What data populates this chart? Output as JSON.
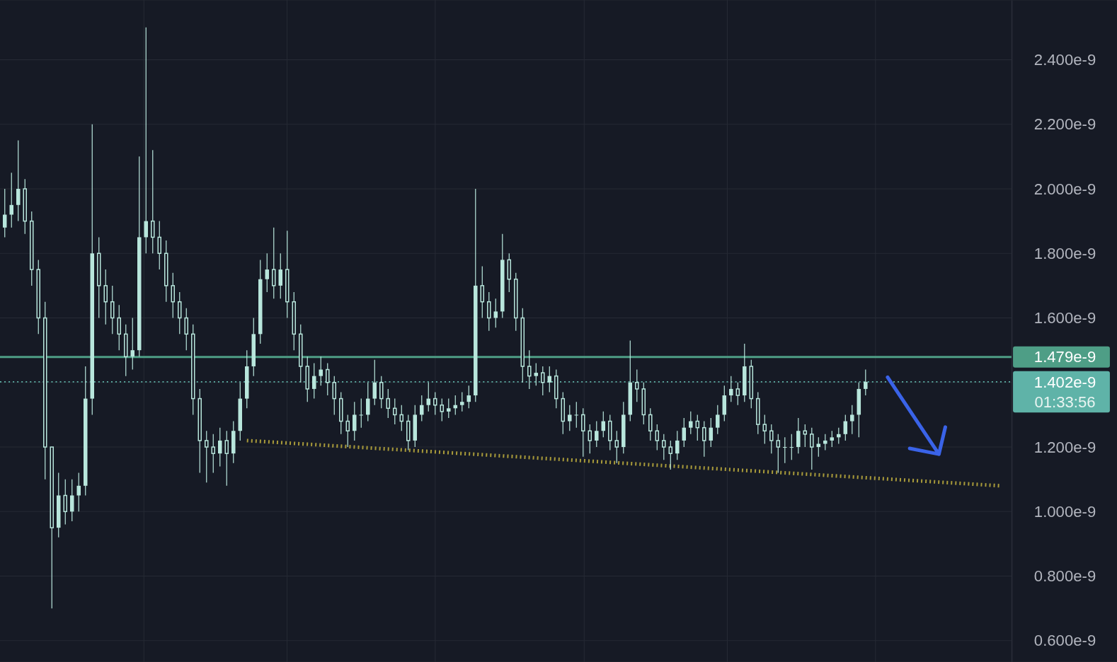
{
  "chart_data": {
    "type": "candlestick",
    "color": "#b8e6dc",
    "categories": [
      null,
      null,
      null,
      null,
      null,
      null,
      null,
      null,
      null,
      null,
      null,
      null,
      null,
      null,
      null,
      null,
      null,
      null,
      null,
      null,
      null,
      null,
      null,
      null,
      null,
      null,
      null,
      null,
      null,
      null,
      null,
      null,
      null,
      null,
      null,
      null,
      null,
      null,
      null,
      null,
      null,
      null,
      null,
      null,
      null,
      null,
      null,
      null,
      null,
      null,
      null,
      null,
      null,
      null,
      null,
      null,
      null,
      null,
      null,
      null,
      null,
      null,
      null,
      null,
      null,
      null,
      null,
      null,
      null,
      null,
      null,
      null,
      null,
      null,
      null,
      null,
      null,
      null,
      null,
      null,
      null,
      null,
      null,
      null,
      null,
      null,
      null,
      null,
      null,
      null,
      null,
      null,
      null,
      null,
      null,
      null,
      null,
      null,
      null,
      null,
      null,
      null,
      null,
      null,
      null,
      null,
      null,
      null,
      null,
      null,
      null,
      null,
      null,
      null,
      null,
      null,
      null,
      null,
      null,
      null,
      null,
      null,
      null,
      null,
      null,
      null,
      null,
      null,
      null,
      null,
      null,
      null,
      null,
      null,
      null,
      null,
      null,
      null,
      null,
      null,
      null,
      null,
      null,
      null,
      null,
      null,
      null,
      null,
      null,
      null
    ],
    "ohlc": [
      [
        1.88e-09,
        2e-09,
        1.85e-09,
        1.92e-09
      ],
      [
        1.92e-09,
        2.05e-09,
        1.88e-09,
        1.95e-09
      ],
      [
        1.95e-09,
        2.15e-09,
        1.9e-09,
        2e-09
      ],
      [
        2e-09,
        2.03e-09,
        1.86e-09,
        1.9e-09
      ],
      [
        1.9e-09,
        1.93e-09,
        1.7e-09,
        1.75e-09
      ],
      [
        1.75e-09,
        1.78e-09,
        1.55e-09,
        1.6e-09
      ],
      [
        1.6e-09,
        1.65e-09,
        1.1e-09,
        1.2e-09
      ],
      [
        1.2e-09,
        1.2e-09,
        7e-10,
        9.5e-10
      ],
      [
        9.5e-10,
        1.12e-09,
        9.2e-10,
        1.05e-09
      ],
      [
        1.05e-09,
        1.1e-09,
        9.6e-10,
        1e-09
      ],
      [
        1e-09,
        1.1e-09,
        9.7e-10,
        1.05e-09
      ],
      [
        1.05e-09,
        1.12e-09,
        1e-09,
        1.08e-09
      ],
      [
        1.08e-09,
        1.45e-09,
        1.05e-09,
        1.35e-09
      ],
      [
        1.35e-09,
        2.2e-09,
        1.3e-09,
        1.8e-09
      ],
      [
        1.8e-09,
        1.85e-09,
        1.6e-09,
        1.7e-09
      ],
      [
        1.7e-09,
        1.75e-09,
        1.58e-09,
        1.65e-09
      ],
      [
        1.65e-09,
        1.7e-09,
        1.55e-09,
        1.6e-09
      ],
      [
        1.6e-09,
        1.64e-09,
        1.5e-09,
        1.55e-09
      ],
      [
        1.55e-09,
        1.58e-09,
        1.42e-09,
        1.48e-09
      ],
      [
        1.48e-09,
        1.6e-09,
        1.44e-09,
        1.5e-09
      ],
      [
        1.5e-09,
        2.1e-09,
        1.48e-09,
        1.85e-09
      ],
      [
        1.85e-09,
        2.5e-09,
        1.8e-09,
        1.9e-09
      ],
      [
        1.9e-09,
        2.12e-09,
        1.8e-09,
        1.85e-09
      ],
      [
        1.85e-09,
        1.9e-09,
        1.75e-09,
        1.8e-09
      ],
      [
        1.8e-09,
        1.84e-09,
        1.65e-09,
        1.7e-09
      ],
      [
        1.7e-09,
        1.74e-09,
        1.6e-09,
        1.65e-09
      ],
      [
        1.65e-09,
        1.68e-09,
        1.55e-09,
        1.6e-09
      ],
      [
        1.6e-09,
        1.63e-09,
        1.5e-09,
        1.55e-09
      ],
      [
        1.55e-09,
        1.58e-09,
        1.3e-09,
        1.35e-09
      ],
      [
        1.35e-09,
        1.38e-09,
        1.12e-09,
        1.22e-09
      ],
      [
        1.22e-09,
        1.25e-09,
        1.09e-09,
        1.2e-09
      ],
      [
        1.2e-09,
        1.24e-09,
        1.12e-09,
        1.18e-09
      ],
      [
        1.18e-09,
        1.26e-09,
        1.14e-09,
        1.22e-09
      ],
      [
        1.22e-09,
        1.25e-09,
        1.08e-09,
        1.18e-09
      ],
      [
        1.18e-09,
        1.28e-09,
        1.15e-09,
        1.25e-09
      ],
      [
        1.25e-09,
        1.4e-09,
        1.22e-09,
        1.35e-09
      ],
      [
        1.35e-09,
        1.5e-09,
        1.32e-09,
        1.45e-09
      ],
      [
        1.45e-09,
        1.6e-09,
        1.42e-09,
        1.55e-09
      ],
      [
        1.55e-09,
        1.78e-09,
        1.52e-09,
        1.72e-09
      ],
      [
        1.72e-09,
        1.8e-09,
        1.68e-09,
        1.75e-09
      ],
      [
        1.75e-09,
        1.88e-09,
        1.66e-09,
        1.7e-09
      ],
      [
        1.7e-09,
        1.8e-09,
        1.66e-09,
        1.75e-09
      ],
      [
        1.75e-09,
        1.87e-09,
        1.6e-09,
        1.65e-09
      ],
      [
        1.65e-09,
        1.68e-09,
        1.5e-09,
        1.55e-09
      ],
      [
        1.55e-09,
        1.58e-09,
        1.4e-09,
        1.45e-09
      ],
      [
        1.45e-09,
        1.48e-09,
        1.34e-09,
        1.38e-09
      ],
      [
        1.38e-09,
        1.46e-09,
        1.35e-09,
        1.42e-09
      ],
      [
        1.42e-09,
        1.48e-09,
        1.39e-09,
        1.44e-09
      ],
      [
        1.44e-09,
        1.46e-09,
        1.36e-09,
        1.4e-09
      ],
      [
        1.4e-09,
        1.42e-09,
        1.3e-09,
        1.35e-09
      ],
      [
        1.35e-09,
        1.37e-09,
        1.24e-09,
        1.28e-09
      ],
      [
        1.28e-09,
        1.3e-09,
        1.2e-09,
        1.25e-09
      ],
      [
        1.25e-09,
        1.34e-09,
        1.22e-09,
        1.3e-09
      ],
      [
        1.3e-09,
        1.35e-09,
        1.26e-09,
        1.3e-09
      ],
      [
        1.3e-09,
        1.4e-09,
        1.28e-09,
        1.35e-09
      ],
      [
        1.35e-09,
        1.47e-09,
        1.33e-09,
        1.4e-09
      ],
      [
        1.4e-09,
        1.42e-09,
        1.32e-09,
        1.35e-09
      ],
      [
        1.35e-09,
        1.38e-09,
        1.29e-09,
        1.32e-09
      ],
      [
        1.32e-09,
        1.35e-09,
        1.27e-09,
        1.3e-09
      ],
      [
        1.3e-09,
        1.33e-09,
        1.25e-09,
        1.28e-09
      ],
      [
        1.28e-09,
        1.3e-09,
        1.19e-09,
        1.22e-09
      ],
      [
        1.22e-09,
        1.33e-09,
        1.2e-09,
        1.3e-09
      ],
      [
        1.3e-09,
        1.36e-09,
        1.28e-09,
        1.33e-09
      ],
      [
        1.33e-09,
        1.4e-09,
        1.31e-09,
        1.35e-09
      ],
      [
        1.35e-09,
        1.37e-09,
        1.3e-09,
        1.33e-09
      ],
      [
        1.33e-09,
        1.35e-09,
        1.28e-09,
        1.31e-09
      ],
      [
        1.31e-09,
        1.35e-09,
        1.29e-09,
        1.32e-09
      ],
      [
        1.32e-09,
        1.36e-09,
        1.3e-09,
        1.33e-09
      ],
      [
        1.33e-09,
        1.37e-09,
        1.31e-09,
        1.34e-09
      ],
      [
        1.34e-09,
        1.39e-09,
        1.32e-09,
        1.36e-09
      ],
      [
        1.36e-09,
        2e-09,
        1.34e-09,
        1.7e-09
      ],
      [
        1.7e-09,
        1.76e-09,
        1.6e-09,
        1.65e-09
      ],
      [
        1.65e-09,
        1.68e-09,
        1.56e-09,
        1.6e-09
      ],
      [
        1.6e-09,
        1.66e-09,
        1.57e-09,
        1.62e-09
      ],
      [
        1.62e-09,
        1.86e-09,
        1.6e-09,
        1.78e-09
      ],
      [
        1.78e-09,
        1.8e-09,
        1.68e-09,
        1.72e-09
      ],
      [
        1.72e-09,
        1.74e-09,
        1.56e-09,
        1.6e-09
      ],
      [
        1.6e-09,
        1.63e-09,
        1.4e-09,
        1.45e-09
      ],
      [
        1.45e-09,
        1.5e-09,
        1.38e-09,
        1.42e-09
      ],
      [
        1.42e-09,
        1.46e-09,
        1.39e-09,
        1.43e-09
      ],
      [
        1.43e-09,
        1.45e-09,
        1.36e-09,
        1.4e-09
      ],
      [
        1.4e-09,
        1.45e-09,
        1.37e-09,
        1.42e-09
      ],
      [
        1.42e-09,
        1.44e-09,
        1.32e-09,
        1.35e-09
      ],
      [
        1.35e-09,
        1.37e-09,
        1.24e-09,
        1.28e-09
      ],
      [
        1.28e-09,
        1.33e-09,
        1.25e-09,
        1.3e-09
      ],
      [
        1.3e-09,
        1.34e-09,
        1.26e-09,
        1.3e-09
      ],
      [
        1.3e-09,
        1.32e-09,
        1.17e-09,
        1.25e-09
      ],
      [
        1.25e-09,
        1.27e-09,
        1.18e-09,
        1.22e-09
      ],
      [
        1.22e-09,
        1.28e-09,
        1.2e-09,
        1.25e-09
      ],
      [
        1.25e-09,
        1.31e-09,
        1.23e-09,
        1.28e-09
      ],
      [
        1.28e-09,
        1.3e-09,
        1.19e-09,
        1.22e-09
      ],
      [
        1.22e-09,
        1.25e-09,
        1.15e-09,
        1.2e-09
      ],
      [
        1.2e-09,
        1.34e-09,
        1.18e-09,
        1.3e-09
      ],
      [
        1.3e-09,
        1.53e-09,
        1.28e-09,
        1.4e-09
      ],
      [
        1.4e-09,
        1.44e-09,
        1.34e-09,
        1.38e-09
      ],
      [
        1.38e-09,
        1.4e-09,
        1.27e-09,
        1.3e-09
      ],
      [
        1.3e-09,
        1.32e-09,
        1.22e-09,
        1.25e-09
      ],
      [
        1.25e-09,
        1.27e-09,
        1.19e-09,
        1.22e-09
      ],
      [
        1.22e-09,
        1.24e-09,
        1.16e-09,
        1.2e-09
      ],
      [
        1.2e-09,
        1.22e-09,
        1.13e-09,
        1.18e-09
      ],
      [
        1.18e-09,
        1.25e-09,
        1.16e-09,
        1.22e-09
      ],
      [
        1.22e-09,
        1.29e-09,
        1.2e-09,
        1.26e-09
      ],
      [
        1.26e-09,
        1.31e-09,
        1.24e-09,
        1.28e-09
      ],
      [
        1.28e-09,
        1.3e-09,
        1.22e-09,
        1.26e-09
      ],
      [
        1.26e-09,
        1.28e-09,
        1.17e-09,
        1.22e-09
      ],
      [
        1.22e-09,
        1.29e-09,
        1.2e-09,
        1.26e-09
      ],
      [
        1.26e-09,
        1.33e-09,
        1.24e-09,
        1.3e-09
      ],
      [
        1.3e-09,
        1.39e-09,
        1.28e-09,
        1.36e-09
      ],
      [
        1.36e-09,
        1.42e-09,
        1.34e-09,
        1.38e-09
      ],
      [
        1.38e-09,
        1.4e-09,
        1.33e-09,
        1.36e-09
      ],
      [
        1.36e-09,
        1.52e-09,
        1.34e-09,
        1.45e-09
      ],
      [
        1.45e-09,
        1.47e-09,
        1.32e-09,
        1.35e-09
      ],
      [
        1.35e-09,
        1.37e-09,
        1.24e-09,
        1.27e-09
      ],
      [
        1.27e-09,
        1.3e-09,
        1.21e-09,
        1.25e-09
      ],
      [
        1.25e-09,
        1.27e-09,
        1.18e-09,
        1.22e-09
      ],
      [
        1.22e-09,
        1.24e-09,
        1.12e-09,
        1.2e-09
      ],
      [
        1.2e-09,
        1.23e-09,
        1.15e-09,
        1.2e-09
      ],
      [
        1.2e-09,
        1.24e-09,
        1.16e-09,
        1.2e-09
      ],
      [
        1.2e-09,
        1.29e-09,
        1.18e-09,
        1.25e-09
      ],
      [
        1.25e-09,
        1.27e-09,
        1.2e-09,
        1.24e-09
      ],
      [
        1.24e-09,
        1.26e-09,
        1.13e-09,
        1.2e-09
      ],
      [
        1.2e-09,
        1.23e-09,
        1.17e-09,
        1.21e-09
      ],
      [
        1.21e-09,
        1.24e-09,
        1.19e-09,
        1.22e-09
      ],
      [
        1.22e-09,
        1.25e-09,
        1.2e-09,
        1.23e-09
      ],
      [
        1.23e-09,
        1.26e-09,
        1.21e-09,
        1.24e-09
      ],
      [
        1.24e-09,
        1.3e-09,
        1.22e-09,
        1.28e-09
      ],
      [
        1.28e-09,
        1.33e-09,
        1.24e-09,
        1.3e-09
      ],
      [
        1.3e-09,
        1.4e-09,
        1.23e-09,
        1.38e-09
      ],
      [
        1.38e-09,
        1.44e-09,
        1.36e-09,
        1.402e-09
      ],
      null,
      null,
      null,
      null,
      null,
      null,
      null,
      null,
      null,
      null,
      null,
      null,
      null,
      null,
      null,
      null,
      null,
      null,
      null,
      null,
      null
    ],
    "series": [
      {
        "type": "line",
        "values": [
          null,
          null,
          null,
          null,
          null,
          null,
          null,
          null,
          null,
          null,
          null,
          null,
          null,
          null,
          null,
          null,
          null,
          null,
          null,
          null,
          null,
          null,
          null,
          null,
          null,
          null,
          null,
          null,
          null,
          null,
          null,
          null,
          null,
          null,
          null,
          null,
          1.22e-09,
          null,
          null,
          null,
          null,
          null,
          null,
          null,
          null,
          null,
          null,
          null,
          null,
          null,
          null,
          null,
          null,
          null,
          null,
          null,
          null,
          null,
          null,
          null,
          null,
          null,
          null,
          null,
          null,
          null,
          null,
          null,
          null,
          null,
          null,
          null,
          null,
          null,
          null,
          null,
          null,
          null,
          null,
          null,
          null,
          null,
          null,
          null,
          null,
          null,
          null,
          null,
          null,
          null,
          null,
          null,
          null,
          null,
          null,
          null,
          null,
          null,
          null,
          null,
          null,
          null,
          null,
          null,
          null,
          null,
          null,
          null,
          null,
          null,
          null,
          null,
          null,
          null,
          null,
          null,
          null,
          null,
          null,
          null,
          null,
          null,
          null,
          null,
          null,
          null,
          null,
          null,
          null,
          null,
          null,
          null,
          null,
          null,
          null,
          null,
          null,
          null,
          null,
          null,
          null,
          null,
          null,
          null,
          null,
          null,
          null,
          null,
          1.08e-09,
          null
        ],
        "color": "#a89a3a",
        "line_style": "dotted"
      }
    ],
    "ylim": [
      5.34e-10,
      2.585e-09
    ],
    "yticks": [
      {
        "value": 6e-10,
        "label": "0.600e-9"
      },
      {
        "value": 8e-10,
        "label": "0.800e-9"
      },
      {
        "value": 1e-09,
        "label": "1.000e-9"
      },
      {
        "value": 1.2e-09,
        "label": "1.200e-9"
      },
      {
        "value": 1.4e-09,
        "label": null
      },
      {
        "value": 1.6e-09,
        "label": "1.600e-9"
      },
      {
        "value": 1.8e-09,
        "label": "1.800e-9"
      },
      {
        "value": 2e-09,
        "label": "2.000e-9"
      },
      {
        "value": 2.2e-09,
        "label": "2.200e-9"
      },
      {
        "value": 2.4e-09,
        "label": "2.400e-9"
      }
    ],
    "grid": true,
    "tick_labels": "y",
    "ref_lines": [
      {
        "axis": "y",
        "value": 1.479e-09,
        "label": "1.479e-9",
        "color": "#4e9e86",
        "line_style": "solid"
      },
      {
        "axis": "y",
        "value": 1.402e-09,
        "label": "1.402e-9",
        "color": "#5fb3a8",
        "line_style": "dotted"
      }
    ],
    "annotations": [
      "01:33:56"
    ]
  }
}
